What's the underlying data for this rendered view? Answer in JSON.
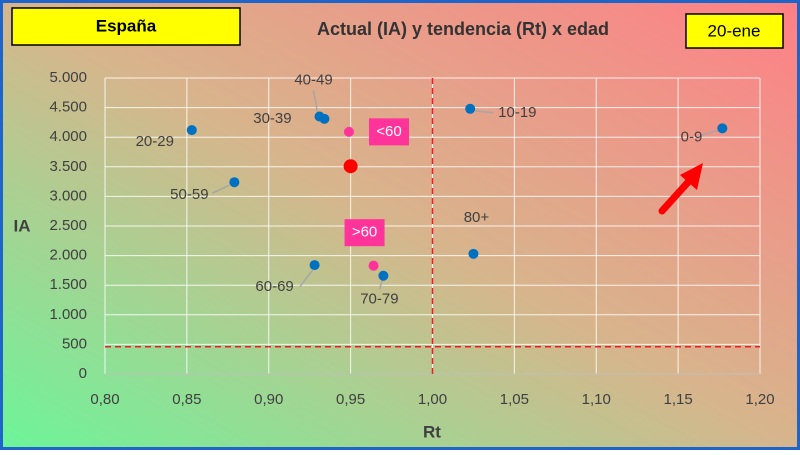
{
  "chart_data": {
    "type": "scatter",
    "title": "Actual (IA) y tendencia (Rt) x edad",
    "region": "España",
    "date": "20-ene",
    "xlabel": "Rt",
    "ylabel": "IA",
    "xlim": [
      0.8,
      1.2
    ],
    "ylim": [
      0,
      5000
    ],
    "xticks": [
      {
        "value": 0.8,
        "label": "0,80"
      },
      {
        "value": 0.85,
        "label": "0,85"
      },
      {
        "value": 0.9,
        "label": "0,90"
      },
      {
        "value": 0.95,
        "label": "0,95"
      },
      {
        "value": 1.0,
        "label": "1,00"
      },
      {
        "value": 1.05,
        "label": "1,05"
      },
      {
        "value": 1.1,
        "label": "1,10"
      },
      {
        "value": 1.15,
        "label": "1,15"
      },
      {
        "value": 1.2,
        "label": "1,20"
      }
    ],
    "yticks": [
      0,
      {
        "value": 500,
        "label": "500"
      },
      {
        "value": 1000,
        "label": "1.000"
      },
      {
        "value": 1500,
        "label": "1.500"
      },
      {
        "value": 2000,
        "label": "2.000"
      },
      {
        "value": 2500,
        "label": "2.500"
      },
      {
        "value": 3000,
        "label": "3.000"
      },
      {
        "value": 3500,
        "label": "3.500"
      },
      {
        "value": 4000,
        "label": "4.000"
      },
      {
        "value": 4500,
        "label": "4.500"
      },
      {
        "value": 5000,
        "label": "5.000"
      }
    ],
    "grid": true,
    "reference_lines": {
      "x": 1.0,
      "y": 460,
      "color": "#e8202a"
    },
    "series": [
      {
        "color": "#0070c0",
        "point_labels": [
          "0-9",
          "10-19",
          "20-29",
          "30-39",
          "40-49",
          "50-59",
          "60-69",
          "70-79",
          "80+"
        ],
        "x": [
          1.177,
          1.023,
          0.853,
          0.934,
          0.931,
          0.879,
          0.928,
          0.97,
          1.025
        ],
        "values": [
          4150,
          4480,
          4120,
          4310,
          4350,
          3240,
          1840,
          1660,
          2030
        ]
      },
      {
        "color": "#ff3399",
        "point_labels": [
          "<60",
          ">60"
        ],
        "x": [
          0.949,
          0.964
        ],
        "values": [
          4090,
          1830
        ]
      },
      {
        "color": "#ff0000",
        "x": [
          0.95
        ],
        "values": [
          3510
        ]
      }
    ]
  }
}
